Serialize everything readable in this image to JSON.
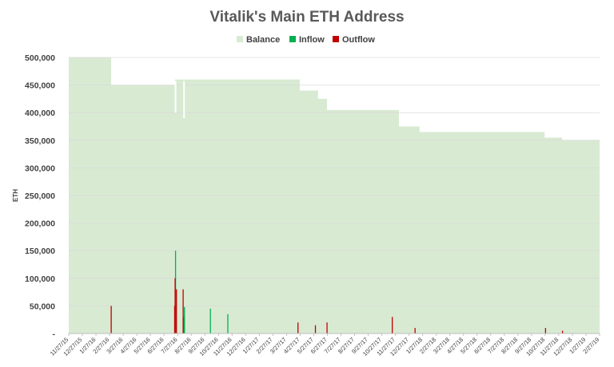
{
  "chart_data": {
    "type": "area",
    "title": "Vitalik's Main ETH Address",
    "ylabel": "ETH",
    "xlabel": "",
    "ylim": [
      0,
      500000
    ],
    "yticks": [
      0,
      50000,
      100000,
      150000,
      200000,
      250000,
      300000,
      350000,
      400000,
      450000,
      500000
    ],
    "ytick_labels": [
      "-",
      "50,000",
      "100,000",
      "150,000",
      "200,000",
      "250,000",
      "300,000",
      "350,000",
      "400,000",
      "450,000",
      "500,000"
    ],
    "grid": true,
    "legend_position": "top-center",
    "x_range": [
      "2015-11-27",
      "2019-02-27"
    ],
    "xtick_labels": [
      "11/27/15",
      "12/27/15",
      "1/27/16",
      "2/27/16",
      "3/27/16",
      "4/27/16",
      "5/27/16",
      "6/27/16",
      "7/27/16",
      "8/27/16",
      "9/27/16",
      "10/27/16",
      "11/27/16",
      "12/27/16",
      "1/27/17",
      "2/27/17",
      "3/27/17",
      "4/27/17",
      "5/27/17",
      "6/27/17",
      "7/27/17",
      "8/27/17",
      "9/27/17",
      "10/27/17",
      "11/27/17",
      "12/27/17",
      "1/27/18",
      "2/27/18",
      "3/27/18",
      "4/27/18",
      "5/27/18",
      "6/27/18",
      "7/27/18",
      "8/27/18",
      "9/27/18",
      "10/27/18",
      "11/27/18",
      "12/27/18",
      "1/27/19",
      "2/27/19"
    ],
    "series": [
      {
        "name": "Balance",
        "color": "#d9ead3",
        "step": true,
        "points": [
          {
            "x": "2015-11-27",
            "y": 500000
          },
          {
            "x": "2016-03-01",
            "y": 450000
          },
          {
            "x": "2016-07-22",
            "y": 460000
          },
          {
            "x": "2017-04-27",
            "y": 440000
          },
          {
            "x": "2017-06-07",
            "y": 425000
          },
          {
            "x": "2017-06-27",
            "y": 405000
          },
          {
            "x": "2017-12-05",
            "y": 375000
          },
          {
            "x": "2018-01-20",
            "y": 365000
          },
          {
            "x": "2018-10-27",
            "y": 355000
          },
          {
            "x": "2018-12-05",
            "y": 350000
          },
          {
            "x": "2019-02-27",
            "y": 350000
          }
        ],
        "gaps": [
          {
            "x": "2016-07-23",
            "y": 400000
          },
          {
            "x": "2016-08-11",
            "y": 390000
          }
        ]
      },
      {
        "name": "Inflow",
        "color": "#00b050",
        "points": [
          {
            "x": "2016-07-23",
            "y": 150000
          },
          {
            "x": "2016-08-11",
            "y": 30000
          },
          {
            "x": "2016-08-12",
            "y": 48000
          },
          {
            "x": "2016-10-09",
            "y": 45000
          },
          {
            "x": "2016-11-17",
            "y": 35000
          }
        ]
      },
      {
        "name": "Outflow",
        "color": "#c00000",
        "points": [
          {
            "x": "2016-03-01",
            "y": 50000
          },
          {
            "x": "2016-07-21",
            "y": 50000
          },
          {
            "x": "2016-07-22",
            "y": 100000
          },
          {
            "x": "2016-07-25",
            "y": 80000
          },
          {
            "x": "2016-08-09",
            "y": 80000
          },
          {
            "x": "2017-04-23",
            "y": 20000
          },
          {
            "x": "2017-06-01",
            "y": 15000
          },
          {
            "x": "2017-06-27",
            "y": 20000
          },
          {
            "x": "2017-11-20",
            "y": 30000
          },
          {
            "x": "2018-01-10",
            "y": 10000
          },
          {
            "x": "2018-10-29",
            "y": 10000
          },
          {
            "x": "2018-12-06",
            "y": 5000
          }
        ]
      }
    ]
  }
}
